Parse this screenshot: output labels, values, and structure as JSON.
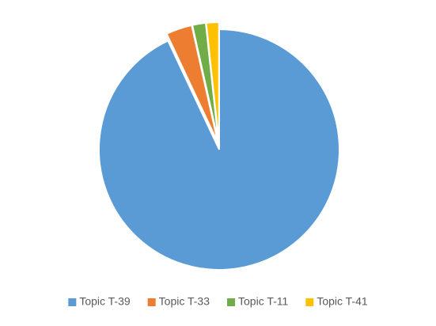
{
  "chart_data": {
    "type": "pie",
    "categories": [
      "Topic T-39",
      "Topic T-33",
      "Topic T-11",
      "Topic T-41"
    ],
    "values": [
      93,
      3.5,
      1.8,
      1.7
    ],
    "colors": [
      "#5b9bd5",
      "#ed7d31",
      "#70ad47",
      "#ffc000"
    ],
    "explode": [
      false,
      true,
      true,
      true
    ],
    "legend": "bottom"
  }
}
